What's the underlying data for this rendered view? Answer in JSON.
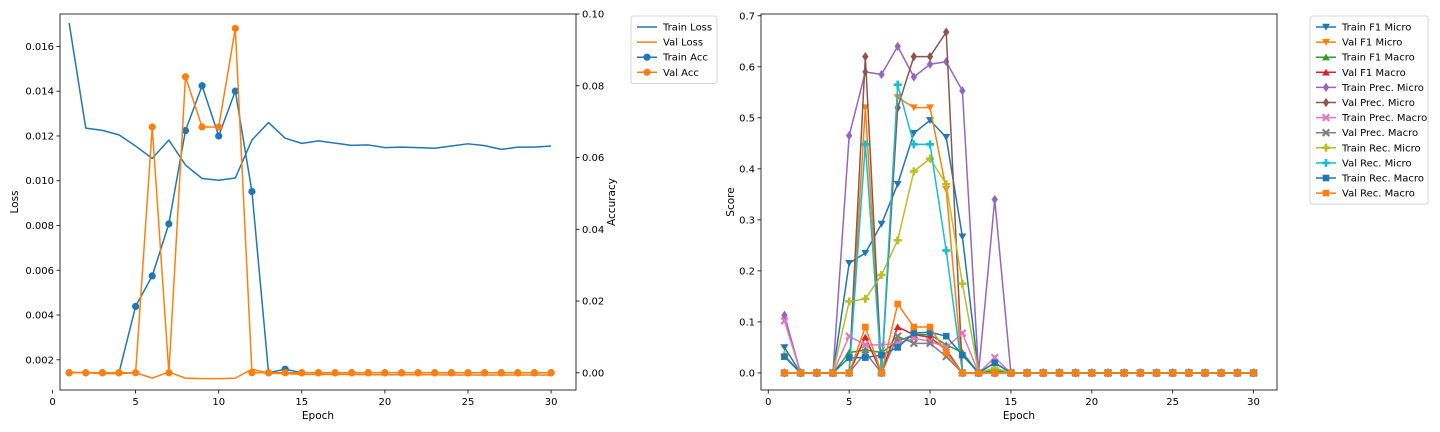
{
  "colors": {
    "blue": "#1f77b4",
    "orange": "#ff7f0e",
    "green": "#2ca02c",
    "red": "#d62728",
    "purple": "#9467bd",
    "brown": "#8c564b",
    "pink": "#e377c2",
    "gray": "#7f7f7f",
    "olive": "#bcbd22",
    "cyan": "#17becf"
  },
  "chart_data": [
    {
      "type": "line",
      "x": [
        1,
        2,
        3,
        4,
        5,
        6,
        7,
        8,
        9,
        10,
        11,
        12,
        13,
        14,
        15,
        16,
        17,
        18,
        19,
        20,
        21,
        22,
        23,
        24,
        25,
        26,
        27,
        28,
        29,
        30
      ],
      "xlabel": "Epoch",
      "xlim": [
        0.45,
        31.5
      ],
      "xticks": [
        0,
        5,
        10,
        15,
        20,
        25,
        30
      ],
      "ylabel": "Loss",
      "ylim": [
        0.00065,
        0.01745
      ],
      "yticks": [
        0.002,
        0.004,
        0.006,
        0.008,
        0.01,
        0.012,
        0.014,
        0.016
      ],
      "ytick_labels": [
        "0.002",
        "0.004",
        "0.006",
        "0.008",
        "0.010",
        "0.012",
        "0.014",
        "0.016"
      ],
      "y2label": "Accuracy",
      "y2lim": [
        -0.0048,
        0.1
      ],
      "y2ticks": [
        0.0,
        0.02,
        0.04,
        0.06,
        0.08,
        0.1
      ],
      "y2tick_labels": [
        "0.00",
        "0.02",
        "0.04",
        "0.06",
        "0.08",
        "0.10"
      ],
      "legend": "outside-upper-right",
      "grid": false,
      "series": [
        {
          "name": "Train Loss",
          "axis": "left",
          "color": "blue",
          "marker": "none",
          "values": [
            0.01705,
            0.01235,
            0.01225,
            0.01205,
            0.01155,
            0.011,
            0.01182,
            0.0107,
            0.0101,
            0.01002,
            0.01012,
            0.01182,
            0.0126,
            0.0119,
            0.01167,
            0.01178,
            0.01168,
            0.01158,
            0.0116,
            0.01148,
            0.0115,
            0.01148,
            0.01145,
            0.01155,
            0.01165,
            0.01157,
            0.0114,
            0.0115,
            0.0115,
            0.01155
          ]
        },
        {
          "name": "Val Loss",
          "axis": "left",
          "color": "orange",
          "marker": "none",
          "values": [
            0.00145,
            0.00142,
            0.00138,
            0.00138,
            0.00142,
            0.00118,
            0.00145,
            0.00118,
            0.00116,
            0.00116,
            0.00118,
            0.00158,
            0.0014,
            0.00138,
            0.00135,
            0.00134,
            0.00134,
            0.00134,
            0.00133,
            0.00133,
            0.00133,
            0.00133,
            0.00133,
            0.00132,
            0.00132,
            0.00132,
            0.00132,
            0.00132,
            0.00132,
            0.00132
          ]
        },
        {
          "name": "Train Acc",
          "axis": "right",
          "color": "blue",
          "marker": "circle",
          "values": [
            0,
            0,
            0,
            0,
            0.0185,
            0.027,
            0.0415,
            0.0675,
            0.08,
            0.066,
            0.0785,
            0.0505,
            0,
            0.001,
            0,
            0,
            0,
            0,
            0,
            0,
            0,
            0,
            0,
            0,
            0,
            0,
            0,
            0,
            0,
            0
          ]
        },
        {
          "name": "Val Acc",
          "axis": "right",
          "color": "orange",
          "marker": "circle",
          "values": [
            0,
            0,
            0,
            0,
            0,
            0.0685,
            0,
            0.0825,
            0.0685,
            0.0685,
            0.096,
            0,
            0,
            0,
            0,
            0,
            0,
            0,
            0,
            0,
            0,
            0,
            0,
            0,
            0,
            0,
            0,
            0,
            0,
            0
          ]
        }
      ]
    },
    {
      "type": "line",
      "x": [
        1,
        2,
        3,
        4,
        5,
        6,
        7,
        8,
        9,
        10,
        11,
        12,
        13,
        14,
        15,
        16,
        17,
        18,
        19,
        20,
        21,
        22,
        23,
        24,
        25,
        26,
        27,
        28,
        29,
        30
      ],
      "xlabel": "Epoch",
      "xlim": [
        -0.45,
        31.45
      ],
      "xticks": [
        0,
        5,
        10,
        15,
        20,
        25,
        30
      ],
      "ylabel": "Score",
      "ylim": [
        -0.0335,
        0.7035
      ],
      "yticks": [
        0.0,
        0.1,
        0.2,
        0.3,
        0.4,
        0.5,
        0.6,
        0.7
      ],
      "ytick_labels": [
        "0.0",
        "0.1",
        "0.2",
        "0.3",
        "0.4",
        "0.5",
        "0.6",
        "0.7"
      ],
      "legend": "outside-upper-right",
      "grid": false,
      "series": [
        {
          "name": "Train F1 Micro",
          "color": "blue",
          "marker": "tri-down",
          "values": [
            0.05,
            0,
            0,
            0,
            0.215,
            0.235,
            0.292,
            0.37,
            0.47,
            0.495,
            0.462,
            0.267,
            0,
            0.02,
            0,
            0,
            0,
            0,
            0,
            0,
            0,
            0,
            0,
            0,
            0,
            0,
            0,
            0,
            0,
            0
          ]
        },
        {
          "name": "Val F1 Micro",
          "color": "orange",
          "marker": "tri-down",
          "values": [
            0,
            0,
            0,
            0,
            0,
            0.52,
            0,
            0.54,
            0.52,
            0.52,
            0.36,
            0,
            0,
            0,
            0,
            0,
            0,
            0,
            0,
            0,
            0,
            0,
            0,
            0,
            0,
            0,
            0,
            0,
            0,
            0
          ]
        },
        {
          "name": "Train F1 Macro",
          "color": "green",
          "marker": "tri-up",
          "values": [
            0.032,
            0,
            0,
            0,
            0.04,
            0.045,
            0.04,
            0.062,
            0.075,
            0.075,
            0.055,
            0.04,
            0,
            0.005,
            0,
            0,
            0,
            0,
            0,
            0,
            0,
            0,
            0,
            0,
            0,
            0,
            0,
            0,
            0,
            0
          ]
        },
        {
          "name": "Val F1 Macro",
          "color": "red",
          "marker": "tri-up",
          "values": [
            0,
            0,
            0,
            0,
            0,
            0.07,
            0,
            0.09,
            0.075,
            0.07,
            0.045,
            0,
            0,
            0,
            0,
            0,
            0,
            0,
            0,
            0,
            0,
            0,
            0,
            0,
            0,
            0,
            0,
            0,
            0,
            0
          ]
        },
        {
          "name": "Train Prec. Micro",
          "color": "purple",
          "marker": "diamond",
          "values": [
            0.113,
            0,
            0,
            0,
            0.465,
            0.59,
            0.585,
            0.64,
            0.58,
            0.605,
            0.61,
            0.553,
            0,
            0.34,
            0,
            0,
            0,
            0,
            0,
            0,
            0,
            0,
            0,
            0,
            0,
            0,
            0,
            0,
            0,
            0
          ]
        },
        {
          "name": "Val Prec. Micro",
          "color": "brown",
          "marker": "diamond",
          "values": [
            0,
            0,
            0,
            0,
            0,
            0.62,
            0,
            0.52,
            0.62,
            0.62,
            0.668,
            0,
            0,
            0,
            0,
            0,
            0,
            0,
            0,
            0,
            0,
            0,
            0,
            0,
            0,
            0,
            0,
            0,
            0,
            0
          ]
        },
        {
          "name": "Train Prec. Macro",
          "color": "pink",
          "marker": "x",
          "values": [
            0.102,
            0,
            0,
            0,
            0.072,
            0.055,
            0.055,
            0.058,
            0.068,
            0.062,
            0.05,
            0.078,
            0,
            0.03,
            0,
            0,
            0,
            0,
            0,
            0,
            0,
            0,
            0,
            0,
            0,
            0,
            0,
            0,
            0,
            0
          ]
        },
        {
          "name": "Val Prec. Macro",
          "color": "gray",
          "marker": "x",
          "values": [
            0,
            0,
            0,
            0,
            0,
            0.04,
            0,
            0.072,
            0.058,
            0.058,
            0.032,
            0,
            0,
            0,
            0,
            0,
            0,
            0,
            0,
            0,
            0,
            0,
            0,
            0,
            0,
            0,
            0,
            0,
            0,
            0
          ]
        },
        {
          "name": "Train Rec. Micro",
          "color": "olive",
          "marker": "plus",
          "values": [
            0.035,
            0,
            0,
            0,
            0.14,
            0.145,
            0.192,
            0.26,
            0.395,
            0.42,
            0.37,
            0.175,
            0,
            0.01,
            0,
            0,
            0,
            0,
            0,
            0,
            0,
            0,
            0,
            0,
            0,
            0,
            0,
            0,
            0,
            0
          ]
        },
        {
          "name": "Val Rec. Micro",
          "color": "cyan",
          "marker": "plus",
          "values": [
            0,
            0,
            0,
            0,
            0,
            0.448,
            0,
            0.565,
            0.448,
            0.448,
            0.24,
            0,
            0,
            0,
            0,
            0,
            0,
            0,
            0,
            0,
            0,
            0,
            0,
            0,
            0,
            0,
            0,
            0,
            0,
            0
          ]
        },
        {
          "name": "Train Rec. Macro",
          "color": "blue",
          "marker": "square",
          "values": [
            0.032,
            0,
            0,
            0,
            0.03,
            0.03,
            0.035,
            0.05,
            0.078,
            0.08,
            0.072,
            0.035,
            0,
            0.02,
            0,
            0,
            0,
            0,
            0,
            0,
            0,
            0,
            0,
            0,
            0,
            0,
            0,
            0,
            0,
            0
          ]
        },
        {
          "name": "Val Rec. Macro",
          "color": "orange",
          "marker": "square",
          "values": [
            0,
            0,
            0,
            0,
            0,
            0.09,
            0,
            0.135,
            0.09,
            0.09,
            0.04,
            0,
            0,
            0,
            0,
            0,
            0,
            0,
            0,
            0,
            0,
            0,
            0,
            0,
            0,
            0,
            0,
            0,
            0,
            0
          ]
        }
      ]
    }
  ]
}
